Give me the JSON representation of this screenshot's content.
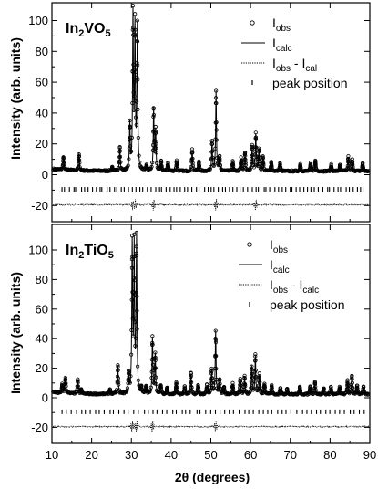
{
  "chart_data": {
    "type": "scatter",
    "xlabel": "2θ (degrees)",
    "ylabel": "Intensity (arb. units)",
    "xlim": [
      10,
      90
    ],
    "ylim": [
      -25,
      105
    ],
    "x_ticks": [
      10,
      20,
      30,
      40,
      50,
      60,
      70,
      80,
      90
    ],
    "y_ticks": [
      -20,
      0,
      20,
      40,
      60,
      80,
      100
    ],
    "panels": [
      {
        "title": {
          "prefix": "In",
          "sub1": "2",
          "mid": "VO",
          "sub2": "5"
        },
        "legend": [
          {
            "marker": "circle",
            "main": "I",
            "sub": "obs"
          },
          {
            "marker": "solid-line",
            "main": "I",
            "sub": "calc"
          },
          {
            "marker": "dotted-line",
            "main": "I",
            "sub": "obs",
            "joiner": " - I",
            "sub2": "cal"
          },
          {
            "marker": "tick",
            "main": "peak position"
          }
        ],
        "peaks": [
          [
            12.9,
            8.5
          ],
          [
            16.8,
            11
          ],
          [
            25.2,
            2.5
          ],
          [
            27.1,
            15
          ],
          [
            29.6,
            30
          ],
          [
            30.4,
            100
          ],
          [
            30.9,
            92
          ],
          [
            31.5,
            93
          ],
          [
            33.8,
            3
          ],
          [
            35.6,
            40
          ],
          [
            36.1,
            26
          ],
          [
            37.5,
            6
          ],
          [
            39.2,
            5
          ],
          [
            41.4,
            7
          ],
          [
            45.3,
            14
          ],
          [
            47.0,
            6
          ],
          [
            50.3,
            19
          ],
          [
            51.3,
            52
          ],
          [
            52.2,
            9
          ],
          [
            55.5,
            6
          ],
          [
            57.6,
            8
          ],
          [
            58.6,
            12
          ],
          [
            60.4,
            16
          ],
          [
            61.3,
            24
          ],
          [
            62.1,
            14
          ],
          [
            63.1,
            9
          ],
          [
            65.2,
            6
          ],
          [
            67.4,
            5
          ],
          [
            72.5,
            4
          ],
          [
            75.1,
            5
          ],
          [
            76.3,
            7
          ],
          [
            80.3,
            4
          ],
          [
            82.5,
            4
          ],
          [
            84.6,
            9
          ],
          [
            85.6,
            7
          ],
          [
            88.2,
            5
          ]
        ],
        "reflection_count": 82,
        "diff_peaks": [
          30.4,
          30.9,
          35.6,
          51.3,
          61.3
        ]
      },
      {
        "title": {
          "prefix": "In",
          "sub1": "2",
          "mid": "TiO",
          "sub2": "5"
        },
        "legend": [
          {
            "marker": "circle",
            "main": "I",
            "sub": "obs"
          },
          {
            "marker": "solid-line",
            "main": "I",
            "sub": "calc"
          },
          {
            "marker": "dotted-line",
            "main": "I",
            "sub": "obs",
            "joiner": " - I",
            "sub2": "calc"
          },
          {
            "marker": "tick",
            "main": "peak position"
          }
        ],
        "peaks": [
          [
            12.6,
            6
          ],
          [
            13.4,
            11
          ],
          [
            16.5,
            9
          ],
          [
            17.4,
            3
          ],
          [
            24.6,
            3
          ],
          [
            26.6,
            19
          ],
          [
            29.3,
            14
          ],
          [
            30.2,
            100
          ],
          [
            30.7,
            98
          ],
          [
            31.3,
            105
          ],
          [
            32.5,
            4
          ],
          [
            33.7,
            5
          ],
          [
            35.3,
            38
          ],
          [
            36.0,
            27
          ],
          [
            37.4,
            6
          ],
          [
            39.0,
            5
          ],
          [
            41.3,
            8
          ],
          [
            43.4,
            5
          ],
          [
            45.0,
            14
          ],
          [
            46.8,
            6
          ],
          [
            49.0,
            6
          ],
          [
            50.2,
            17
          ],
          [
            51.2,
            43
          ],
          [
            52.2,
            10
          ],
          [
            53.3,
            5
          ],
          [
            55.5,
            7
          ],
          [
            57.4,
            10
          ],
          [
            58.5,
            12
          ],
          [
            60.3,
            19
          ],
          [
            61.2,
            26
          ],
          [
            62.2,
            13
          ],
          [
            63.5,
            7
          ],
          [
            65.3,
            6
          ],
          [
            67.5,
            4
          ],
          [
            69.2,
            4
          ],
          [
            72.4,
            5
          ],
          [
            75.0,
            5
          ],
          [
            76.2,
            8
          ],
          [
            78.4,
            4
          ],
          [
            80.2,
            5
          ],
          [
            82.4,
            5
          ],
          [
            84.4,
            9
          ],
          [
            85.5,
            12
          ],
          [
            86.8,
            6
          ],
          [
            88.4,
            5
          ]
        ],
        "reflection_count": 64,
        "diff_peaks": [
          30.2,
          31.3,
          35.3,
          51.2
        ]
      }
    ]
  }
}
